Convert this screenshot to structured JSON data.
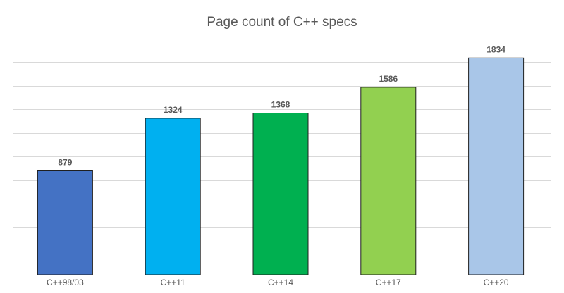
{
  "chart_data": {
    "type": "bar",
    "title": "Page count of C++ specs",
    "categories": [
      "C++98/03",
      "C++11",
      "C++14",
      "C++17",
      "C++20"
    ],
    "values": [
      879,
      1324,
      1368,
      1586,
      1834
    ],
    "colors": [
      "#4472c4",
      "#00b0f0",
      "#00b050",
      "#92d050",
      "#a9c6e8"
    ],
    "ylim": [
      0,
      1800
    ],
    "grid": true,
    "legend": "none",
    "data_labels": true
  }
}
